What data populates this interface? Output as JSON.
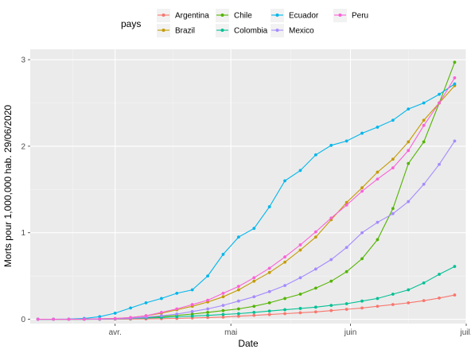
{
  "chart_data": {
    "type": "line",
    "xlabel": "Date",
    "ylabel": "Morts pour 1,000,000 hab. 29/06/2020",
    "legend_title": "pays",
    "legend_position": "top",
    "grid": true,
    "x_ticks": [
      {
        "date": "2020-04-01",
        "label": "avr."
      },
      {
        "date": "2020-05-01",
        "label": "mai"
      },
      {
        "date": "2020-06-01",
        "label": "juin"
      },
      {
        "date": "2020-07-01",
        "label": "juil."
      }
    ],
    "y_ticks": [
      0,
      1,
      2,
      3
    ],
    "xlim": [
      "2020-03-10",
      "2020-07-01"
    ],
    "ylim": [
      -0.05,
      3.12
    ],
    "x": [
      "2020-03-12",
      "2020-03-16",
      "2020-03-20",
      "2020-03-24",
      "2020-03-28",
      "2020-04-01",
      "2020-04-05",
      "2020-04-09",
      "2020-04-13",
      "2020-04-17",
      "2020-04-21",
      "2020-04-25",
      "2020-04-29",
      "2020-05-03",
      "2020-05-07",
      "2020-05-11",
      "2020-05-15",
      "2020-05-19",
      "2020-05-23",
      "2020-05-27",
      "2020-05-31",
      "2020-06-04",
      "2020-06-08",
      "2020-06-12",
      "2020-06-16",
      "2020-06-20",
      "2020-06-24",
      "2020-06-28"
    ],
    "series": [
      {
        "name": "Argentina",
        "color": "#F8766D",
        "values": [
          0,
          0,
          0,
          0,
          0,
          0.001,
          0.002,
          0.004,
          0.007,
          0.01,
          0.015,
          0.02,
          0.025,
          0.035,
          0.045,
          0.055,
          0.065,
          0.075,
          0.085,
          0.1,
          0.115,
          0.13,
          0.15,
          0.17,
          0.19,
          0.215,
          0.245,
          0.28
        ]
      },
      {
        "name": "Brazil",
        "color": "#C49A00",
        "values": [
          0,
          0,
          0,
          0.001,
          0.005,
          0.01,
          0.02,
          0.04,
          0.07,
          0.11,
          0.15,
          0.2,
          0.26,
          0.34,
          0.44,
          0.54,
          0.66,
          0.8,
          0.95,
          1.15,
          1.35,
          1.52,
          1.7,
          1.85,
          2.05,
          2.3,
          2.5,
          2.7
        ]
      },
      {
        "name": "Chile",
        "color": "#53B400",
        "values": [
          0,
          0,
          0,
          0,
          0.002,
          0.005,
          0.01,
          0.02,
          0.03,
          0.045,
          0.06,
          0.08,
          0.1,
          0.12,
          0.15,
          0.19,
          0.24,
          0.29,
          0.36,
          0.44,
          0.55,
          0.7,
          0.92,
          1.28,
          1.8,
          2.05,
          2.5,
          2.97
        ]
      },
      {
        "name": "Colombia",
        "color": "#00C094",
        "values": [
          0,
          0,
          0,
          0,
          0.001,
          0.005,
          0.01,
          0.015,
          0.02,
          0.028,
          0.036,
          0.045,
          0.055,
          0.065,
          0.08,
          0.095,
          0.11,
          0.125,
          0.14,
          0.16,
          0.18,
          0.21,
          0.24,
          0.29,
          0.34,
          0.42,
          0.52,
          0.61
        ]
      },
      {
        "name": "Ecuador",
        "color": "#00B6EB",
        "values": [
          0,
          0,
          0.002,
          0.01,
          0.03,
          0.07,
          0.13,
          0.19,
          0.24,
          0.3,
          0.34,
          0.5,
          0.75,
          0.95,
          1.05,
          1.3,
          1.6,
          1.72,
          1.9,
          2.01,
          2.06,
          2.15,
          2.22,
          2.3,
          2.43,
          2.5,
          2.6,
          2.72
        ]
      },
      {
        "name": "Mexico",
        "color": "#A58AFF",
        "values": [
          0,
          0,
          0,
          0,
          0.002,
          0.005,
          0.012,
          0.025,
          0.04,
          0.06,
          0.09,
          0.12,
          0.16,
          0.21,
          0.26,
          0.32,
          0.39,
          0.48,
          0.58,
          0.69,
          0.83,
          1.0,
          1.12,
          1.22,
          1.36,
          1.56,
          1.79,
          2.06
        ]
      },
      {
        "name": "Peru",
        "color": "#FB61D7",
        "values": [
          0,
          0,
          0,
          0.001,
          0.005,
          0.01,
          0.02,
          0.04,
          0.08,
          0.12,
          0.17,
          0.22,
          0.3,
          0.38,
          0.48,
          0.59,
          0.72,
          0.86,
          1.01,
          1.17,
          1.32,
          1.48,
          1.62,
          1.75,
          1.95,
          2.24,
          2.5,
          2.79
        ]
      }
    ]
  }
}
